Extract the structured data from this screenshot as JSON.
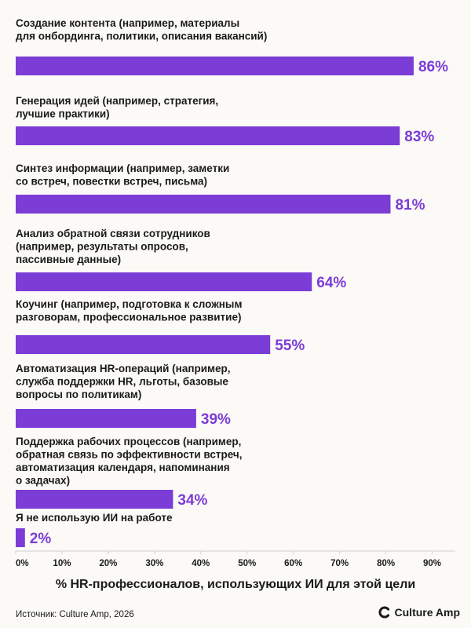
{
  "chart_data": {
    "type": "bar",
    "orientation": "horizontal",
    "categories": [
      [
        "Создание контента (например, материалы",
        "для онбординга, политики, описания вакансий)"
      ],
      [
        "Генерация идей (например, стратегия,",
        "лучшие практики)"
      ],
      [
        "Синтез информации (например, заметки",
        "со встреч, повестки встреч, письма)"
      ],
      [
        "Анализ обратной связи сотрудников",
        "(например, результаты опросов,",
        "пассивные данные)"
      ],
      [
        "Коучинг (например, подготовка к сложным",
        "разговорам, профессиональное развитие)"
      ],
      [
        "Автоматизация HR-операций (например,",
        "служба поддержки HR, льготы, базовые",
        "вопросы по политикам)"
      ],
      [
        "Поддержка рабочих процессов (например,",
        "обратная связь по эффективности встреч,",
        "автоматизация календаря, напоминания",
        "о задачах)"
      ],
      [
        "Я не использую ИИ на работе"
      ]
    ],
    "values": [
      86,
      83,
      81,
      64,
      55,
      39,
      34,
      2
    ],
    "value_labels": [
      "86%",
      "83%",
      "81%",
      "64%",
      "55%",
      "39%",
      "34%",
      "2%"
    ],
    "xlabel": "% HR-профессионалов, использующих ИИ для этой цели",
    "xlim": [
      0,
      95
    ],
    "xticks": [
      0,
      10,
      20,
      30,
      40,
      50,
      60,
      70,
      80,
      90
    ],
    "xtick_labels": [
      "0%",
      "10%",
      "20%",
      "30%",
      "40%",
      "50%",
      "60%",
      "70%",
      "80%",
      "90%"
    ],
    "grid": false,
    "bar_color": "#7c3cd6",
    "label_color": "#7c3cd6"
  },
  "footer": {
    "source": "Источник: Culture Amp, 2026",
    "brand": "Culture Amp",
    "brand_icon": "culture-amp-logo-icon"
  }
}
